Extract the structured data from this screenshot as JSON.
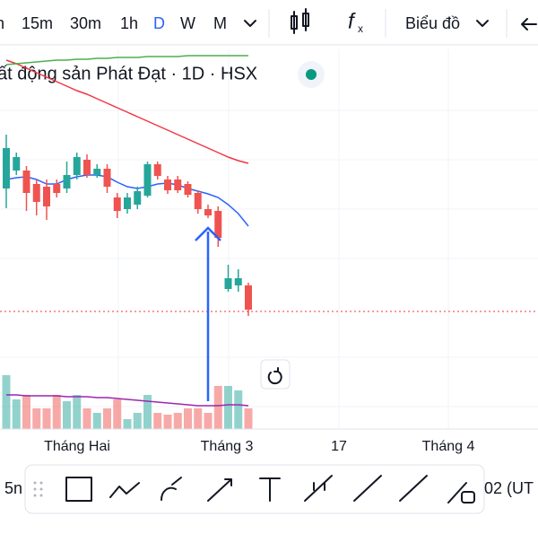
{
  "toolbar": {
    "intervals": [
      "n",
      "15m",
      "30m",
      "1h",
      "D",
      "W",
      "M"
    ],
    "active_interval": "D",
    "chart_menu": "Biểu đồ"
  },
  "chart_title": "ất động sản Phát Đạt · 1D · HSX",
  "x_axis_labels": [
    "Tháng Hai",
    "Tháng 3",
    "17",
    "Tháng 4"
  ],
  "bottom_bar": {
    "left": "5n",
    "right": "02 (UT"
  },
  "chart_data": {
    "type": "candlestick",
    "ylim": [
      0,
      423
    ],
    "up_color": "#26a69a",
    "down_color": "#ef5350",
    "open": [
      268,
      288,
      288,
      273,
      270,
      273,
      268,
      283,
      300,
      283,
      290,
      258,
      245,
      250,
      260,
      295,
      278,
      278,
      273,
      263,
      245,
      243,
      156,
      160,
      160
    ],
    "close": [
      313,
      303,
      263,
      253,
      248,
      263,
      283,
      303,
      283,
      290,
      270,
      243,
      258,
      265,
      295,
      282,
      266,
      266,
      261,
      245,
      238,
      213,
      168,
      168,
      133
    ],
    "high": [
      328,
      308,
      293,
      278,
      278,
      278,
      298,
      308,
      306,
      295,
      295,
      263,
      263,
      270,
      298,
      298,
      282,
      282,
      276,
      266,
      250,
      248,
      183,
      178,
      163
    ],
    "low": [
      246,
      283,
      243,
      238,
      233,
      258,
      263,
      278,
      280,
      280,
      263,
      235,
      240,
      245,
      258,
      278,
      262,
      263,
      258,
      240,
      235,
      203,
      153,
      153,
      126
    ],
    "volume": [
      60,
      33,
      38,
      23,
      23,
      38,
      31,
      38,
      23,
      18,
      23,
      33,
      11,
      18,
      38,
      18,
      16,
      18,
      23,
      23,
      18,
      48,
      48,
      43,
      23
    ],
    "series": [
      {
        "name": "ma-blue",
        "color": "#2962ff",
        "values": [
          278,
          280,
          281,
          278,
          273,
          273,
          278,
          281,
          283,
          283,
          281,
          275,
          270,
          268,
          270,
          273,
          274,
          272,
          268,
          265,
          262,
          258,
          250,
          240,
          226
        ]
      },
      {
        "name": "ma-red",
        "color": "#f23645",
        "values": [
          411,
          407,
          402,
          397,
          392,
          387,
          382,
          377,
          373,
          368,
          363,
          358,
          353,
          348,
          343,
          338,
          333,
          328,
          323,
          318,
          313,
          308,
          303,
          299,
          296
        ]
      },
      {
        "name": "ma-green",
        "color": "#4caf50",
        "values": [
          406,
          407,
          408,
          409,
          410,
          411,
          411,
          412,
          412,
          413,
          413,
          414,
          414,
          414,
          415,
          415,
          415,
          415,
          416,
          416,
          416,
          416,
          416,
          416,
          416
        ]
      },
      {
        "name": "volume-ma",
        "color": "#9c27b0",
        "values": [
          38,
          38,
          37,
          37,
          37,
          37,
          36,
          36,
          36,
          35,
          35,
          34,
          33,
          32,
          31,
          30,
          29,
          28,
          27,
          26,
          26,
          26,
          27,
          27,
          26
        ]
      }
    ],
    "last_price": 131,
    "last_price_color": "#f23645"
  }
}
